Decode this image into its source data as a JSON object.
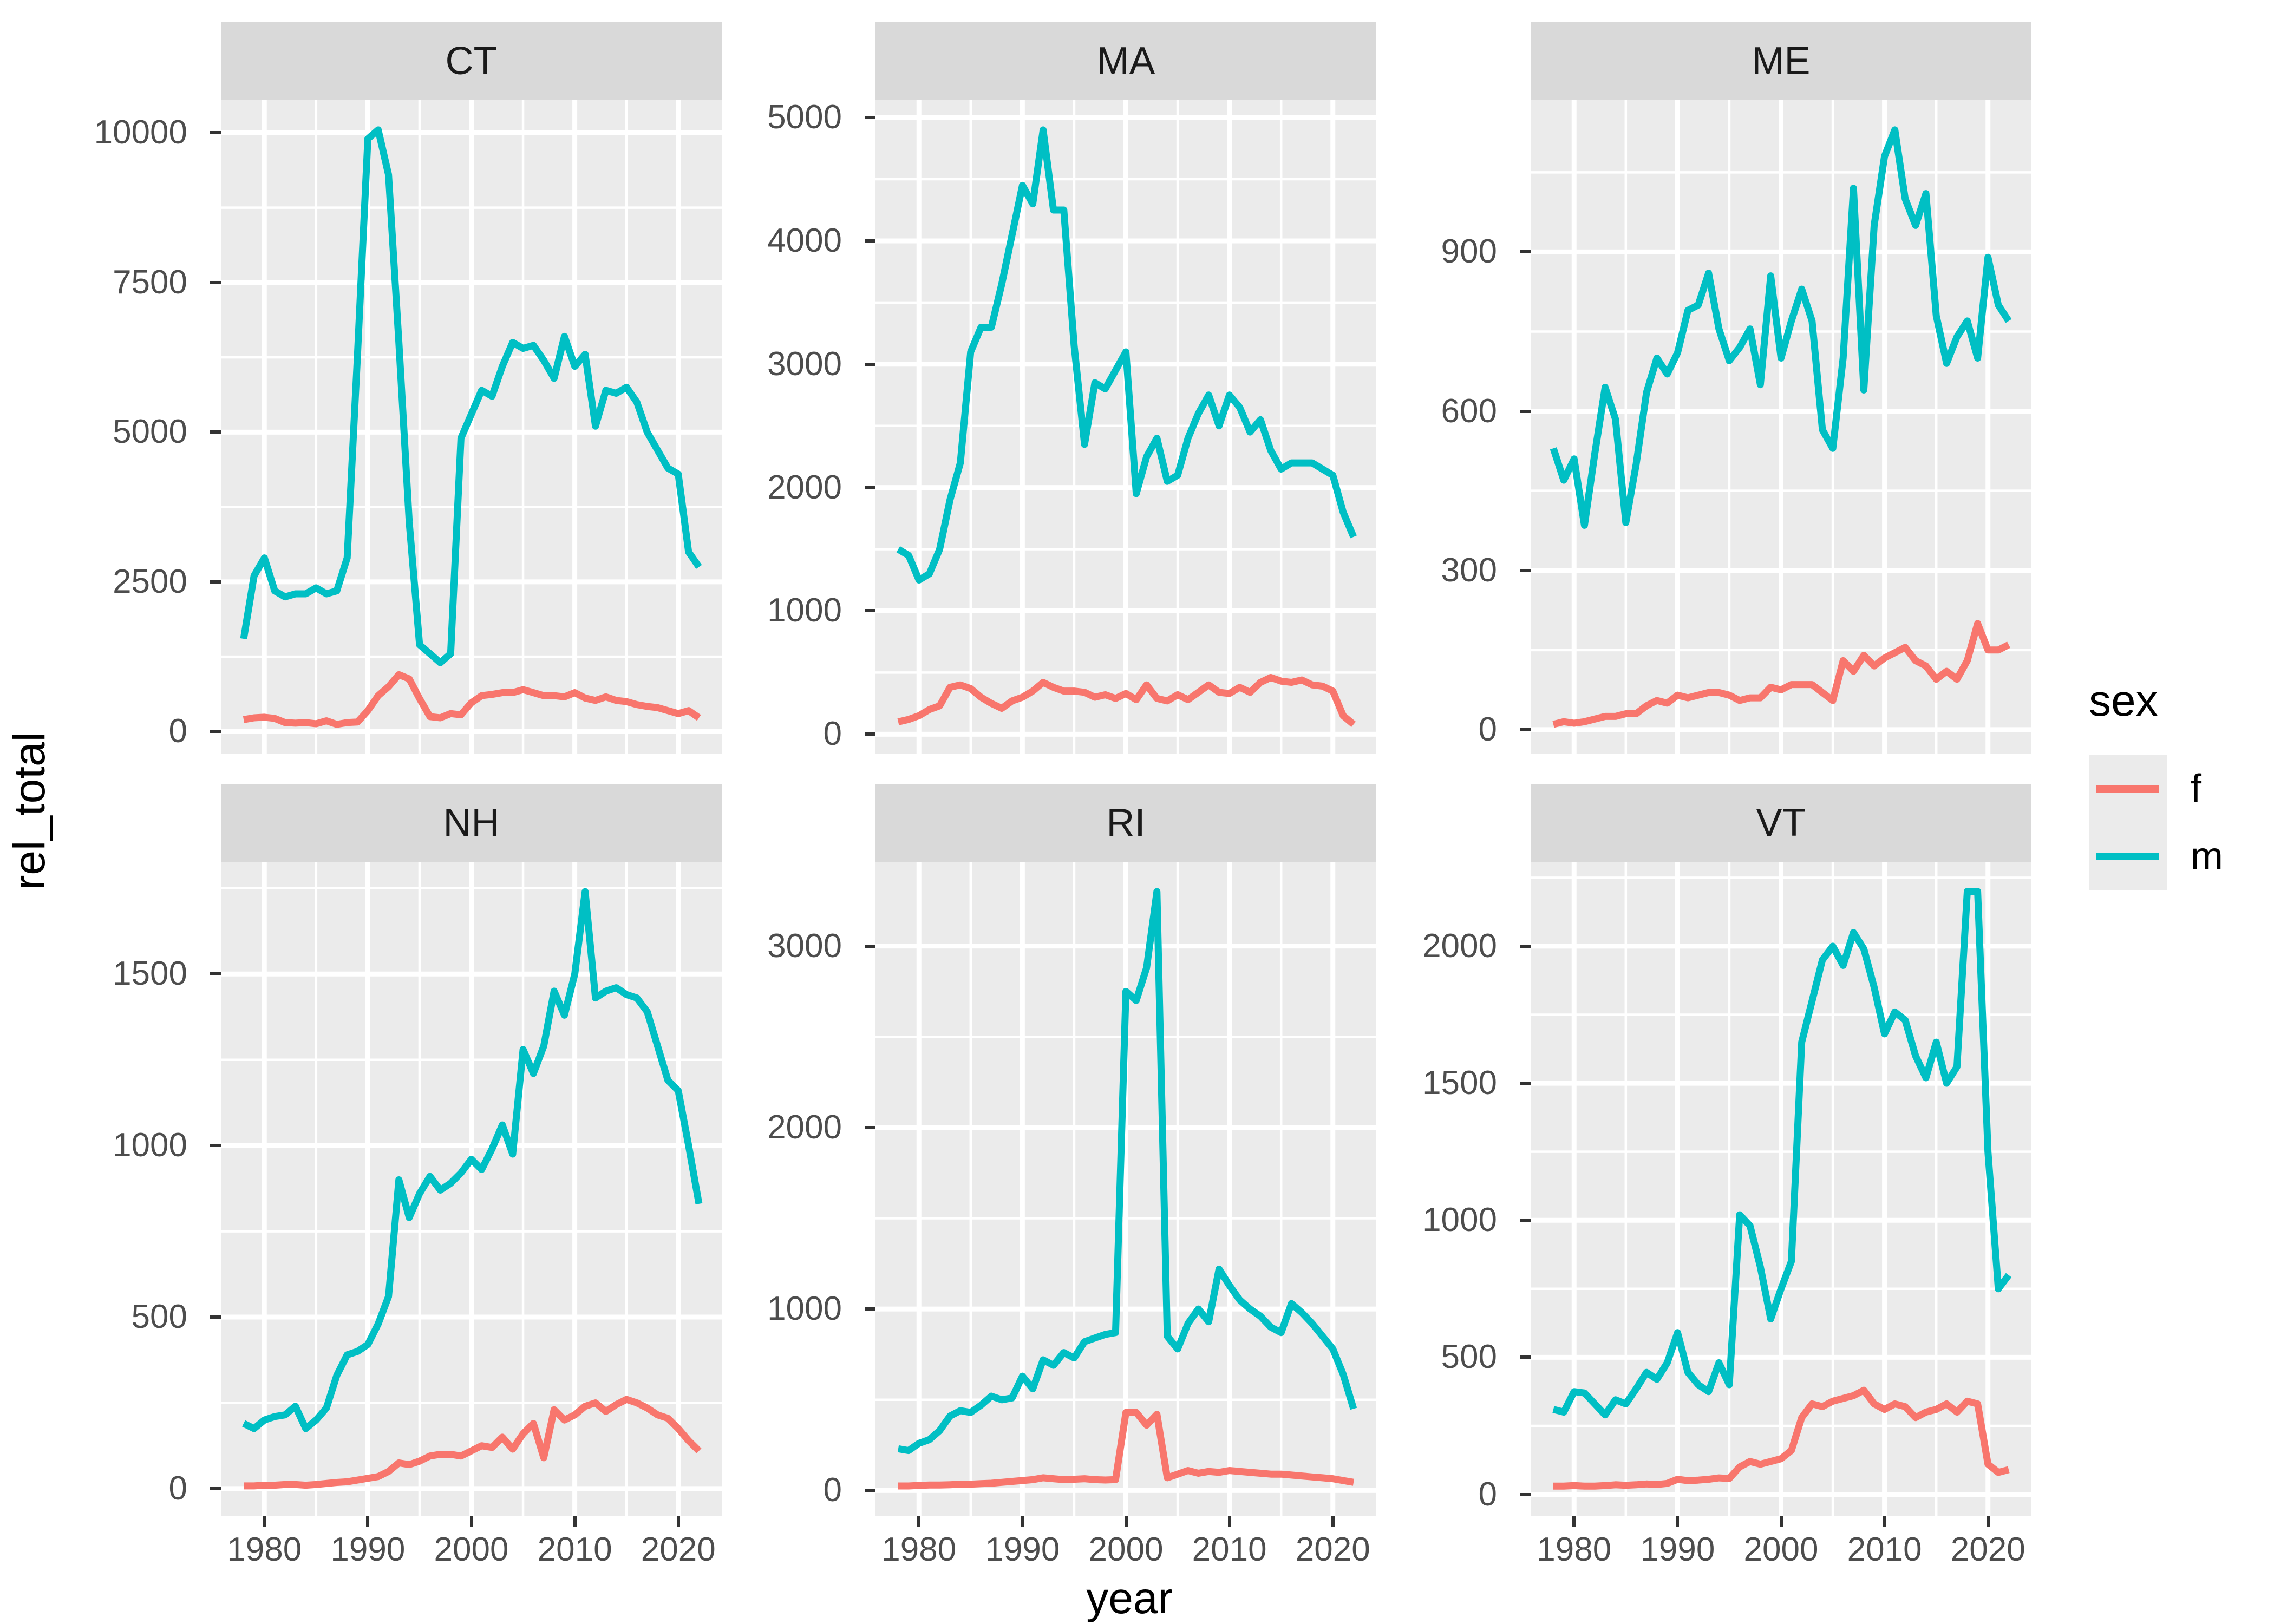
{
  "figure": {
    "y_axis_title": "rel_total",
    "x_axis_title": "year",
    "legend": {
      "title": "sex",
      "entries": [
        {
          "label": "f",
          "color": "#F8766D"
        },
        {
          "label": "m",
          "color": "#00BFC4"
        }
      ]
    },
    "colors": {
      "panel_background": "#EBEBEB",
      "strip_background": "#D9D9D9",
      "grid_lines": "#FFFFFF",
      "axis_text": "#4D4D4D",
      "tick_marks": "#333333",
      "series_f": "#F8766D",
      "series_m": "#00BFC4"
    }
  },
  "chart_data": {
    "type": "line",
    "title": "",
    "xlabel": "year",
    "ylabel": "rel_total",
    "legend_position": "right",
    "grid": true,
    "facet_titles": [
      "CT",
      "MA",
      "ME",
      "NH",
      "RI",
      "VT"
    ],
    "x_ticks": [
      1980,
      1990,
      2000,
      2010,
      2020
    ],
    "xlim": [
      1975.8,
      2024.2
    ],
    "x": [
      1978,
      1979,
      1980,
      1981,
      1982,
      1983,
      1984,
      1985,
      1986,
      1987,
      1988,
      1989,
      1990,
      1991,
      1992,
      1993,
      1994,
      1995,
      1996,
      1997,
      1998,
      1999,
      2000,
      2001,
      2002,
      2003,
      2004,
      2005,
      2006,
      2007,
      2008,
      2009,
      2010,
      2011,
      2012,
      2013,
      2014,
      2015,
      2016,
      2017,
      2018,
      2019,
      2020,
      2021,
      2022
    ],
    "series_colors": {
      "f": "#F8766D",
      "m": "#00BFC4"
    },
    "facets": [
      {
        "label": "CT",
        "ylim": [
          -376,
          10546
        ],
        "y_ticks": [
          0,
          2500,
          5000,
          7500,
          10000
        ],
        "series": [
          {
            "name": "f",
            "values": [
              200,
              230,
              240,
              220,
              150,
              140,
              150,
              130,
              180,
              120,
              150,
              160,
              350,
              600,
              750,
              950,
              880,
              550,
              250,
              230,
              300,
              280,
              480,
              600,
              620,
              650,
              650,
              700,
              650,
              600,
              600,
              580,
              650,
              560,
              520,
              580,
              520,
              500,
              450,
              420,
              400,
              350,
              300,
              350,
              230
            ]
          },
          {
            "name": "m",
            "values": [
              1550,
              2600,
              2900,
              2350,
              2250,
              2300,
              2300,
              2400,
              2300,
              2350,
              2900,
              6300,
              9900,
              10050,
              9300,
              6500,
              3500,
              1450,
              1300,
              1150,
              1300,
              4900,
              5300,
              5700,
              5600,
              6100,
              6500,
              6400,
              6450,
              6200,
              5900,
              6600,
              6100,
              6300,
              5100,
              5700,
              5650,
              5750,
              5500,
              5000,
              4700,
              4400,
              4300,
              3000,
              2750
            ]
          }
        ]
      },
      {
        "label": "MA",
        "ylim": [
          -161,
          5141
        ],
        "y_ticks": [
          0,
          1000,
          2000,
          3000,
          4000,
          5000
        ],
        "series": [
          {
            "name": "f",
            "values": [
              100,
              120,
              150,
              200,
              230,
              380,
              400,
              370,
              300,
              250,
              210,
              270,
              300,
              350,
              420,
              380,
              350,
              350,
              340,
              300,
              320,
              290,
              330,
              280,
              400,
              290,
              270,
              320,
              280,
              340,
              400,
              340,
              330,
              380,
              340,
              420,
              460,
              430,
              420,
              440,
              400,
              390,
              350,
              150,
              80
            ]
          },
          {
            "name": "m",
            "values": [
              1500,
              1450,
              1250,
              1300,
              1500,
              1900,
              2200,
              3100,
              3300,
              3300,
              3650,
              4050,
              4450,
              4300,
              4900,
              4250,
              4250,
              3150,
              2350,
              2850,
              2800,
              2950,
              3100,
              1950,
              2250,
              2400,
              2050,
              2100,
              2400,
              2600,
              2750,
              2500,
              2750,
              2650,
              2450,
              2550,
              2300,
              2150,
              2200,
              2200,
              2200,
              2150,
              2100,
              1800,
              1600
            ]
          }
        ]
      },
      {
        "label": "ME",
        "ylim": [
          -46,
          1186
        ],
        "y_ticks": [
          0,
          300,
          600,
          900
        ],
        "series": [
          {
            "name": "f",
            "values": [
              10,
              15,
              12,
              15,
              20,
              25,
              25,
              30,
              30,
              45,
              55,
              50,
              65,
              60,
              65,
              70,
              70,
              65,
              55,
              60,
              60,
              80,
              75,
              85,
              85,
              85,
              70,
              55,
              130,
              110,
              140,
              120,
              135,
              145,
              155,
              130,
              120,
              95,
              110,
              95,
              130,
              200,
              150,
              150,
              160
            ]
          },
          {
            "name": "m",
            "values": [
              530,
              470,
              510,
              385,
              520,
              645,
              585,
              390,
              500,
              635,
              700,
              670,
              710,
              790,
              800,
              860,
              755,
              695,
              720,
              755,
              650,
              855,
              700,
              770,
              830,
              770,
              565,
              530,
              700,
              1020,
              640,
              950,
              1080,
              1130,
              1000,
              950,
              1010,
              780,
              690,
              740,
              770,
              700,
              890,
              800,
              770
            ]
          }
        ]
      },
      {
        "label": "NH",
        "ylim": [
          -79,
          1827
        ],
        "y_ticks": [
          0,
          500,
          1000,
          1500
        ],
        "series": [
          {
            "name": "f",
            "values": [
              8,
              8,
              10,
              10,
              12,
              12,
              10,
              12,
              15,
              18,
              20,
              25,
              30,
              35,
              50,
              75,
              70,
              80,
              95,
              100,
              100,
              95,
              110,
              125,
              120,
              150,
              115,
              160,
              190,
              90,
              230,
              200,
              215,
              240,
              250,
              225,
              245,
              260,
              250,
              235,
              215,
              205,
              175,
              140,
              110
            ]
          },
          {
            "name": "m",
            "values": [
              190,
              175,
              200,
              210,
              215,
              240,
              175,
              200,
              235,
              330,
              390,
              400,
              420,
              480,
              560,
              900,
              790,
              860,
              910,
              870,
              890,
              920,
              960,
              930,
              990,
              1060,
              975,
              1280,
              1210,
              1290,
              1450,
              1380,
              1500,
              1740,
              1430,
              1450,
              1460,
              1440,
              1430,
              1390,
              1290,
              1190,
              1160,
              1000,
              830
            ]
          }
        ]
      },
      {
        "label": "RI",
        "ylim": [
          -139,
          3464
        ],
        "y_ticks": [
          0,
          1000,
          2000,
          3000
        ],
        "series": [
          {
            "name": "f",
            "values": [
              25,
              25,
              28,
              30,
              30,
              32,
              35,
              35,
              38,
              40,
              45,
              50,
              55,
              60,
              70,
              65,
              60,
              62,
              65,
              60,
              58,
              60,
              430,
              430,
              360,
              420,
              70,
              90,
              110,
              95,
              105,
              100,
              110,
              105,
              100,
              95,
              90,
              90,
              85,
              80,
              75,
              70,
              65,
              55,
              45
            ]
          },
          {
            "name": "m",
            "values": [
              230,
              220,
              260,
              280,
              330,
              410,
              440,
              430,
              470,
              520,
              500,
              510,
              630,
              560,
              720,
              690,
              760,
              730,
              820,
              840,
              860,
              870,
              2750,
              2700,
              2880,
              3300,
              850,
              780,
              920,
              1000,
              930,
              1220,
              1130,
              1050,
              1000,
              960,
              900,
              870,
              1030,
              980,
              920,
              850,
              780,
              640,
              450
            ]
          }
        ]
      },
      {
        "label": "VT",
        "ylim": [
          -78,
          2308
        ],
        "y_ticks": [
          0,
          500,
          1000,
          1500,
          2000
        ],
        "series": [
          {
            "name": "f",
            "values": [
              30,
              30,
              32,
              30,
              30,
              32,
              35,
              33,
              35,
              38,
              36,
              40,
              55,
              50,
              52,
              55,
              60,
              58,
              100,
              120,
              110,
              120,
              130,
              160,
              280,
              330,
              320,
              340,
              350,
              360,
              380,
              330,
              310,
              330,
              320,
              280,
              300,
              310,
              330,
              300,
              340,
              330,
              110,
              80,
              90
            ]
          },
          {
            "name": "m",
            "values": [
              310,
              300,
              375,
              370,
              330,
              290,
              345,
              330,
              385,
              445,
              420,
              480,
              590,
              445,
              400,
              375,
              480,
              400,
              1020,
              980,
              830,
              640,
              750,
              850,
              1650,
              1800,
              1950,
              2000,
              1930,
              2050,
              1990,
              1850,
              1680,
              1760,
              1730,
              1600,
              1520,
              1650,
              1500,
              1560,
              2200,
              2200,
              1250,
              750,
              800
            ]
          }
        ]
      }
    ]
  }
}
